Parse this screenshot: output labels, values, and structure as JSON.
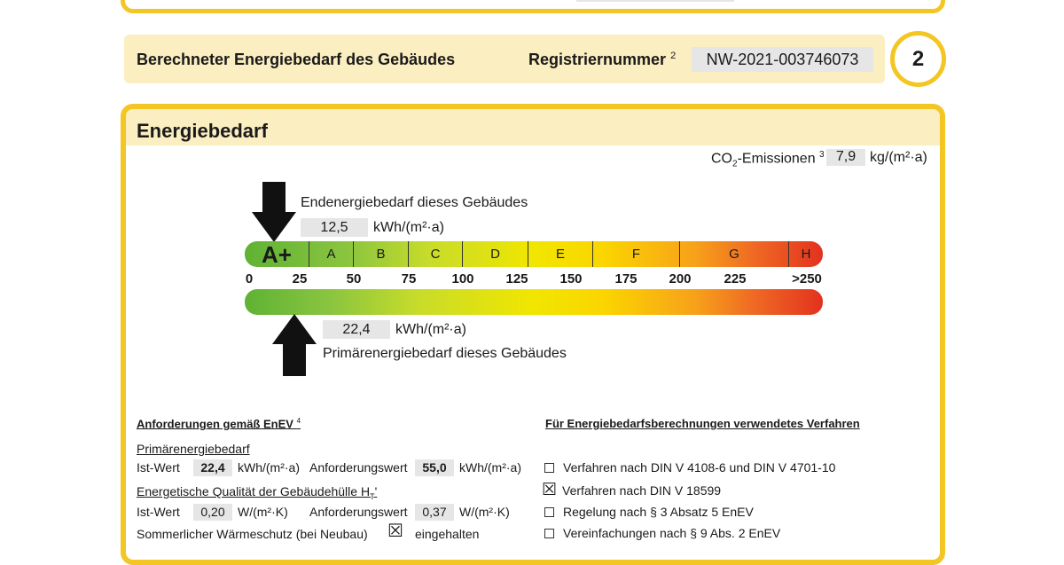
{
  "header": {
    "title": "Berechneter Energiebedarf des Gebäudes",
    "reg_label": "Registriernummer",
    "reg_footnote": "2",
    "reg_number": "NW-2021-003746073",
    "page_number": "2"
  },
  "section": {
    "title": "Energiebedarf",
    "co2": {
      "label_pre": "CO",
      "label_sub": "2",
      "label_post": "-Emissionen",
      "footnote": "3",
      "value": "7,9",
      "unit": "kg/(m²·a)"
    },
    "end_energy": {
      "label": "Endenergiebedarf dieses Gebäudes",
      "value": "12,5",
      "unit": "kWh/(m²·a)"
    },
    "primary_energy": {
      "label": "Primärenergiebedarf dieses Gebäudes",
      "value": "22,4",
      "unit": "kWh/(m²·a)"
    },
    "classes": [
      "A+",
      "A",
      "B",
      "C",
      "D",
      "E",
      "F",
      "G",
      "H"
    ],
    "ticks": [
      "0",
      "25",
      "50",
      "75",
      "100",
      "125",
      "150",
      "175",
      "200",
      "225",
      ">250"
    ]
  },
  "requirements": {
    "title": "Anforderungen gemäß EnEV",
    "footnote": "4",
    "primary": {
      "title": "Primärenergiebedarf",
      "ist_label": "Ist-Wert",
      "ist_value": "22,4",
      "unit": "kWh/(m²·a)",
      "req_label": "Anforderungswert",
      "req_value": "55,0"
    },
    "envelope": {
      "title": "Energetische Qualität der Gebäudehülle H",
      "title_sub": "T",
      "title_post": "'",
      "ist_label": "Ist-Wert",
      "ist_value": "0,20",
      "unit": "W/(m²·K)",
      "req_label": "Anforderungswert",
      "req_value": "0,37"
    },
    "summer": {
      "label": "Sommerlicher Wärmeschutz (bei Neubau)",
      "status": "eingehalten"
    }
  },
  "method": {
    "title": "Für Energiebedarfsberechnungen verwendetes Verfahren",
    "options": [
      {
        "label": "Verfahren nach DIN V 4108-6 und DIN V 4701-10",
        "checked": false
      },
      {
        "label": "Verfahren nach DIN V 18599",
        "checked": true
      },
      {
        "label": "Regelung nach § 3 Absatz 5 EnEV",
        "checked": false
      },
      {
        "label": "Vereinfachungen nach § 9 Abs. 2 EnEV",
        "checked": false
      }
    ]
  }
}
